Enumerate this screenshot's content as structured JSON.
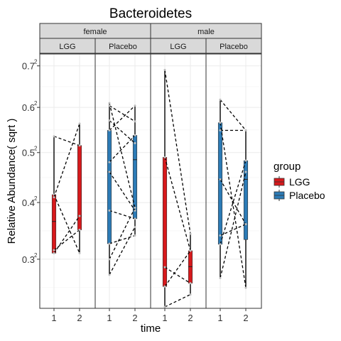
{
  "chart_data": {
    "type": "boxplot",
    "title": "Bacteroidetes",
    "xlabel": "time",
    "ylabel": "Relative Abundance( sqrt )",
    "y_ticks": [
      0.3,
      0.4,
      0.5,
      0.6,
      0.7
    ],
    "y_tick_labels": [
      "0.3",
      "0.4",
      "0.5",
      "0.6",
      "0.7"
    ],
    "ylim": [
      0.225,
      0.73
    ],
    "x_categories": [
      "1",
      "2"
    ],
    "facet_rows": [
      "female",
      "male"
    ],
    "facet_cols": [
      "LGG",
      "Placebo"
    ],
    "legend": {
      "title": "group",
      "items": [
        {
          "label": "LGG",
          "color": "#d7191c"
        },
        {
          "label": "Placebo",
          "color": "#2c7bb6"
        }
      ]
    },
    "panels": [
      {
        "sex": "female",
        "group": "LGG",
        "color": "#d7191c",
        "boxes": [
          {
            "time": "1",
            "min": 0.31,
            "q1": 0.31,
            "median": 0.365,
            "q3": 0.415,
            "max": 0.535
          },
          {
            "time": "2",
            "min": 0.31,
            "q1": 0.35,
            "median": 0.375,
            "q3": 0.515,
            "max": 0.563
          }
        ],
        "lines": [
          [
            0.535,
            0.515
          ],
          [
            0.415,
            0.31
          ],
          [
            0.41,
            0.563
          ],
          [
            0.31,
            0.375
          ],
          [
            0.315,
            0.35
          ]
        ]
      },
      {
        "sex": "female",
        "group": "Placebo",
        "color": "#2c7bb6",
        "boxes": [
          {
            "time": "1",
            "min": 0.275,
            "q1": 0.326,
            "median": 0.46,
            "q3": 0.548,
            "max": 0.61
          },
          {
            "time": "2",
            "min": 0.34,
            "q1": 0.37,
            "median": 0.485,
            "q3": 0.537,
            "max": 0.604
          }
        ],
        "lines": [
          [
            0.61,
            0.39
          ],
          [
            0.604,
            0.568
          ],
          [
            0.57,
            0.52
          ],
          [
            0.548,
            0.604
          ],
          [
            0.48,
            0.537
          ],
          [
            0.46,
            0.385
          ],
          [
            0.385,
            0.37
          ],
          [
            0.326,
            0.34
          ],
          [
            0.3,
            0.39
          ],
          [
            0.275,
            0.355
          ]
        ]
      },
      {
        "sex": "male",
        "group": "LGG",
        "color": "#d7191c",
        "boxes": [
          {
            "time": "1",
            "min": 0.227,
            "q1": 0.257,
            "median": 0.287,
            "q3": 0.49,
            "max": 0.69
          },
          {
            "time": "2",
            "min": 0.245,
            "q1": 0.262,
            "median": 0.288,
            "q3": 0.314,
            "max": 0.343
          }
        ],
        "lines": [
          [
            0.69,
            0.343
          ],
          [
            0.49,
            0.314
          ],
          [
            0.287,
            0.262
          ],
          [
            0.227,
            0.245
          ],
          [
            0.257,
            0.314
          ]
        ]
      },
      {
        "sex": "male",
        "group": "Placebo",
        "color": "#2c7bb6",
        "boxes": [
          {
            "time": "1",
            "min": 0.27,
            "q1": 0.325,
            "median": 0.445,
            "q3": 0.565,
            "max": 0.618
          },
          {
            "time": "2",
            "min": 0.255,
            "q1": 0.333,
            "median": 0.445,
            "q3": 0.483,
            "max": 0.548
          }
        ],
        "lines": [
          [
            0.618,
            0.548
          ],
          [
            0.565,
            0.255
          ],
          [
            0.548,
            0.548
          ],
          [
            0.445,
            0.36
          ],
          [
            0.34,
            0.36
          ],
          [
            0.325,
            0.483
          ],
          [
            0.27,
            0.46
          ]
        ]
      }
    ]
  }
}
